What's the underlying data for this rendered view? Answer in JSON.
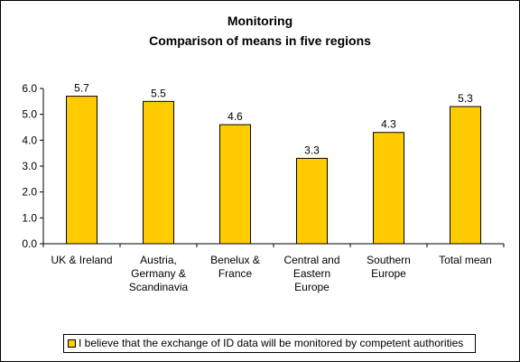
{
  "chart_data": {
    "type": "bar",
    "title": "Monitoring",
    "subtitle": "Comparison of means in five regions",
    "categories": [
      [
        "UK & Ireland"
      ],
      [
        "Austria,",
        "Germany &",
        "Scandinavia"
      ],
      [
        "Benelux &",
        "France"
      ],
      [
        "Central and",
        "Eastern",
        "Europe"
      ],
      [
        "Southern",
        "Europe"
      ],
      [
        "Total mean"
      ]
    ],
    "series": [
      {
        "name": "I believe that the exchange of ID data will be monitored by competent authorities",
        "values": [
          5.7,
          5.5,
          4.6,
          3.3,
          4.3,
          5.3
        ]
      }
    ],
    "data_labels": [
      "5.7",
      "5.5",
      "4.6",
      "3.3",
      "4.3",
      "5.3"
    ],
    "yticks": [
      "0.0",
      "1.0",
      "2.0",
      "3.0",
      "4.0",
      "5.0",
      "6.0"
    ],
    "ylim": [
      0,
      6
    ],
    "xlabel": "",
    "ylabel": "",
    "grid": false,
    "legend_position": "bottom",
    "colors": {
      "bar": "#ffcc00",
      "bar_stroke": "#000000",
      "plot_background": "#ffffff"
    }
  }
}
